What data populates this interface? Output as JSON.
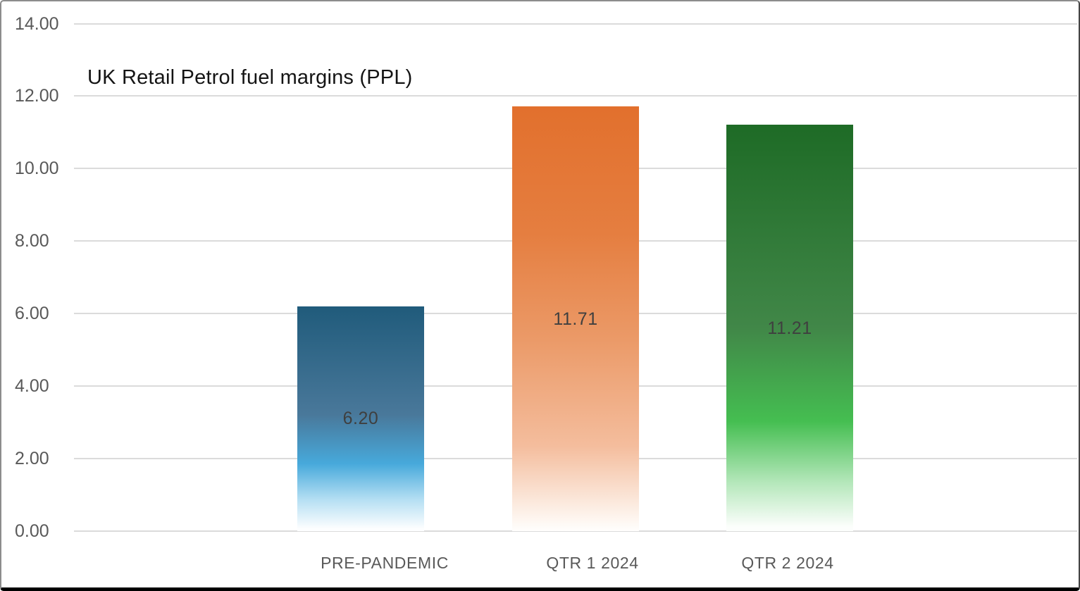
{
  "chart_data": {
    "type": "bar",
    "title": "UK Retail Petrol fuel margins (PPL)",
    "categories": [
      "PRE-PANDEMIC",
      "QTR 1 2024",
      "QTR 2 2024"
    ],
    "values": [
      6.2,
      11.71,
      11.21
    ],
    "value_labels": [
      "6.20",
      "11.71",
      "11.21"
    ],
    "xlabel": "",
    "ylabel": "",
    "ylim": [
      0,
      14
    ],
    "ytick_step": 2,
    "ytick_labels": [
      "0.00",
      "2.00",
      "4.00",
      "6.00",
      "8.00",
      "10.00",
      "12.00",
      "14.00"
    ],
    "grid": true,
    "legend": "none",
    "bar_gradients": [
      {
        "name": "blue",
        "stops": [
          [
            "#205B7B",
            "0%"
          ],
          [
            "#49789A",
            "48%"
          ],
          [
            "#47A9DB",
            "70%"
          ],
          [
            "#B5DFF3",
            "86%"
          ],
          [
            "#FDFEFF",
            "99%"
          ]
        ]
      },
      {
        "name": "orange",
        "stops": [
          [
            "#E2702D",
            "0%"
          ],
          [
            "#E57E40",
            "30%"
          ],
          [
            "#EB9A68",
            "55%"
          ],
          [
            "#F4BD9D",
            "80%"
          ],
          [
            "#FDF2EA",
            "96%"
          ],
          [
            "#FFFEFD",
            "100%"
          ]
        ]
      },
      {
        "name": "green",
        "stops": [
          [
            "#1E6B26",
            "0%"
          ],
          [
            "#418748",
            "50%"
          ],
          [
            "#45BE51",
            "73%"
          ],
          [
            "#B4E7BA",
            "88%"
          ],
          [
            "#FCFEFC",
            "99%"
          ]
        ]
      }
    ]
  },
  "style": {
    "gridline_color": "#DBDBDB",
    "axis_label_color": "#595959",
    "data_label_color": "#3F3F3F",
    "title_color": "#141414",
    "frame_border_color": "#000000",
    "background_color": "#FFFFFF"
  }
}
